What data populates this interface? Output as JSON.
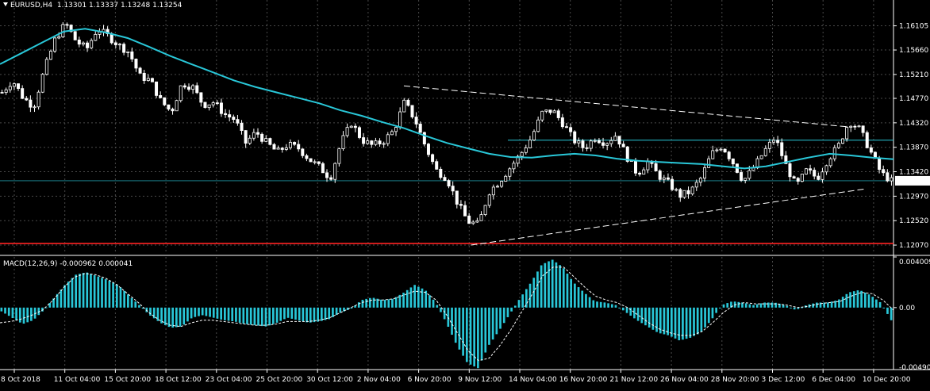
{
  "header": {
    "symbol": "EURUSD,H4",
    "ohlc": "1.13301 1.13337 1.13248 1.13254",
    "macd_label": "MACD(12,26,9) -0.000962 0.000041"
  },
  "colors": {
    "background": "#000000",
    "grid": "#4a4a4a",
    "candle": "#ffffff",
    "moving_average": "#29c7d8",
    "macd_histogram": "#29c7d8",
    "signal_line": "#ffffff",
    "support_line": "#ff2222",
    "horizontal_line": "#29c7d8",
    "price_tag_bg": "#ffffff",
    "price_tag_text": "#000000"
  },
  "chart_data": [
    {
      "type": "candlestick",
      "title": "EURUSD,H4",
      "price_scale": [
        "1.16105",
        "1.15660",
        "1.15210",
        "1.14770",
        "1.14320",
        "1.13870",
        "1.13420",
        "1.12970",
        "1.12520",
        "1.12070"
      ],
      "current_price": "1.13254",
      "ylim": [
        1.1191,
        1.1658
      ],
      "x_ticks": [
        "8 Oct 2018",
        "11 Oct 04:00",
        "15 Oct 20:00",
        "18 Oct 12:00",
        "23 Oct 04:00",
        "25 Oct 20:00",
        "30 Oct 12:00",
        "2 Nov 04:00",
        "6 Nov 20:00",
        "9 Nov 12:00",
        "14 Nov 04:00",
        "16 Nov 20:00",
        "21 Nov 12:00",
        "26 Nov 04:00",
        "28 Nov 20:00",
        "3 Dec 12:00",
        "6 Dec 04:00",
        "10 Dec 20:00"
      ],
      "close_path": [
        1.1488,
        1.151,
        1.1478,
        1.1462,
        1.153,
        1.1585,
        1.1615,
        1.1582,
        1.1568,
        1.1605,
        1.1592,
        1.1575,
        1.1562,
        1.1518,
        1.151,
        1.1472,
        1.1452,
        1.1505,
        1.1498,
        1.1465,
        1.147,
        1.1448,
        1.1438,
        1.1395,
        1.1415,
        1.1395,
        1.1378,
        1.1392,
        1.1385,
        1.1365,
        1.135,
        1.133,
        1.1395,
        1.1432,
        1.14,
        1.139,
        1.1398,
        1.1418,
        1.147,
        1.1438,
        1.1388,
        1.1345,
        1.133,
        1.1285,
        1.125,
        1.1245,
        1.1305,
        1.1325,
        1.135,
        1.1375,
        1.1405,
        1.145,
        1.1455,
        1.143,
        1.14,
        1.1385,
        1.1405,
        1.1395,
        1.141,
        1.137,
        1.1338,
        1.136,
        1.1335,
        1.132,
        1.1298,
        1.1305,
        1.133,
        1.1375,
        1.139,
        1.136,
        1.1325,
        1.135,
        1.138,
        1.1405,
        1.1355,
        1.1315,
        1.1345,
        1.133,
        1.1365,
        1.139,
        1.1435,
        1.142,
        1.138,
        1.134,
        1.1325
      ],
      "moving_average": [
        1.154,
        1.156,
        1.158,
        1.16,
        1.1605,
        1.1598,
        1.1588,
        1.1572,
        1.1555,
        1.154,
        1.1525,
        1.151,
        1.1498,
        1.1488,
        1.1478,
        1.1468,
        1.1455,
        1.1445,
        1.1433,
        1.1422,
        1.1408,
        1.1395,
        1.1385,
        1.1375,
        1.1369,
        1.1368,
        1.1372,
        1.1375,
        1.1372,
        1.1366,
        1.1362,
        1.136,
        1.1358,
        1.1356,
        1.1352,
        1.1348,
        1.1352,
        1.136,
        1.1368,
        1.1375,
        1.1372,
        1.1368,
        1.1365
      ],
      "trend_line_upper": [
        [
          0.452,
          1.15
        ],
        [
          0.947,
          1.1425
        ]
      ],
      "trend_line_lower": [
        [
          0.527,
          1.1207
        ],
        [
          0.967,
          1.131
        ]
      ],
      "support_level": 1.121,
      "horizontal_level": 1.14,
      "current_level": 1.13254
    },
    {
      "type": "bar",
      "title": "MACD(12,26,9) -0.000962 0.000041",
      "y_ticks": [
        "0.004009",
        "0.00",
        "-0.004908"
      ],
      "ylim": [
        -0.004908,
        0.004009
      ],
      "histogram": [
        -0.0003,
        -0.0008,
        -0.0013,
        -0.001,
        -0.0002,
        0.0008,
        0.0018,
        0.0026,
        0.0028,
        0.0025,
        0.0022,
        0.0018,
        0.001,
        0.0002,
        -0.0006,
        -0.0012,
        -0.0016,
        -0.0015,
        -0.0008,
        -0.0006,
        -0.0008,
        -0.001,
        -0.0011,
        -0.0013,
        -0.0014,
        -0.0015,
        -0.0012,
        -0.0008,
        -0.001,
        -0.0012,
        -0.0011,
        -0.0009,
        -0.0004,
        -0.0001,
        0.0006,
        0.0008,
        0.0006,
        0.0007,
        0.0012,
        0.0018,
        0.0014,
        0.0004,
        -0.0012,
        -0.003,
        -0.0044,
        -0.0048,
        -0.003,
        -0.0018,
        -0.0005,
        0.0008,
        0.002,
        0.0034,
        0.0038,
        0.0032,
        0.002,
        0.0012,
        0.0005,
        0.0004,
        0.0002,
        -0.0004,
        -0.001,
        -0.0015,
        -0.002,
        -0.0022,
        -0.0026,
        -0.0024,
        -0.002,
        -0.001,
        0.0002,
        0.0005,
        0.0004,
        0.0002,
        0.0004,
        0.0004,
        0.0002,
        -0.0002,
        0.0002,
        0.0004,
        0.0004,
        0.0006,
        0.0012,
        0.0014,
        0.001,
        0.0004,
        -0.001
      ],
      "signal": [
        -0.0012,
        -0.0011,
        -0.0009,
        -0.0006,
        -0.0002,
        0.0006,
        0.0016,
        0.0024,
        0.0027,
        0.0026,
        0.0023,
        0.0018,
        0.0011,
        0.0004,
        -0.0004,
        -0.001,
        -0.0014,
        -0.0015,
        -0.0012,
        -0.001,
        -0.001,
        -0.0011,
        -0.0012,
        -0.0013,
        -0.0014,
        -0.0014,
        -0.0013,
        -0.0011,
        -0.0011,
        -0.0011,
        -0.001,
        -0.0008,
        -0.0004,
        0.0,
        0.0004,
        0.0006,
        0.0006,
        0.0007,
        0.001,
        0.0013,
        0.0012,
        0.0006,
        -0.0006,
        -0.002,
        -0.0034,
        -0.0042,
        -0.004,
        -0.003,
        -0.0018,
        -0.0004,
        0.001,
        0.0025,
        0.0032,
        0.0032,
        0.0024,
        0.0016,
        0.0009,
        0.0006,
        0.0004,
        0.0,
        -0.0006,
        -0.0012,
        -0.0017,
        -0.002,
        -0.0022,
        -0.0022,
        -0.0019,
        -0.0012,
        -0.0004,
        0.0002,
        0.0004,
        0.0003,
        0.0003,
        0.0003,
        0.0002,
        0.0,
        0.0001,
        0.0003,
        0.0004,
        0.0005,
        0.0009,
        0.0012,
        0.0011,
        0.0006,
        -0.0002
      ]
    }
  ]
}
